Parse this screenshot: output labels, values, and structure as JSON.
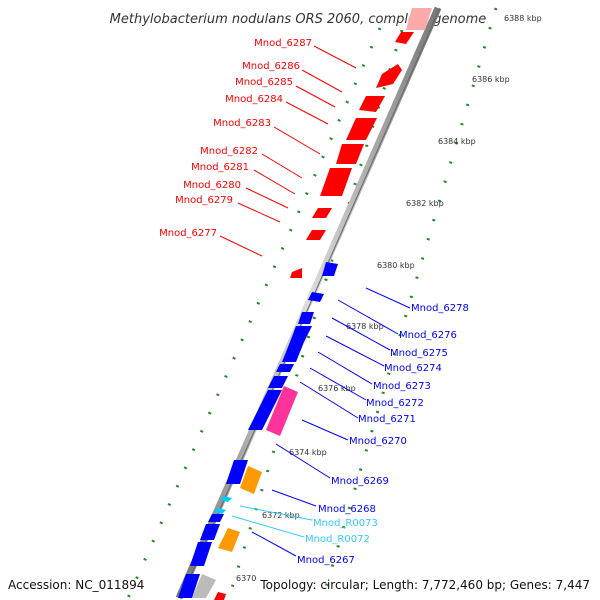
{
  "title": "Methylobacterium nodulans ORS 2060, complete genome",
  "footer": {
    "accession": "Accession: NC_011894",
    "topology": "Topology: circular; Length: 7,772,460 bp; Genes: 7,447"
  },
  "colors": {
    "forward_cds": "#ff0000",
    "reverse_cds": "#0000ff",
    "rrna_or_trna": "#00ccff",
    "other_feature_orange": "#ff9900",
    "other_feature_pink": "#ff3399",
    "other_feature_gray": "#bbbbbb",
    "ruler_tick": "#228b22",
    "backbone": "#999999"
  },
  "ruler_labels": [
    "6388 kbp",
    "6386 kbp",
    "6384 kbp",
    "6382 kbp",
    "6380 kbp",
    "6378 kbp",
    "6376 kbp",
    "6374 kbp",
    "6372 kbp",
    "6370"
  ],
  "forward_genes": [
    "Mnod_6287",
    "Mnod_6286",
    "Mnod_6285",
    "Mnod_6284",
    "Mnod_6283",
    "Mnod_6282",
    "Mnod_6281",
    "Mnod_6280",
    "Mnod_6279",
    "Mnod_6277"
  ],
  "reverse_genes": [
    "Mnod_6278",
    "Mnod_6276",
    "Mnod_6275",
    "Mnod_6274",
    "Mnod_6273",
    "Mnod_6272",
    "Mnod_6271",
    "Mnod_6270",
    "Mnod_6269",
    "Mnod_6268",
    "Mnod_6267"
  ],
  "rna_genes": [
    "Mnod_R0073",
    "Mnod_R0072"
  ]
}
